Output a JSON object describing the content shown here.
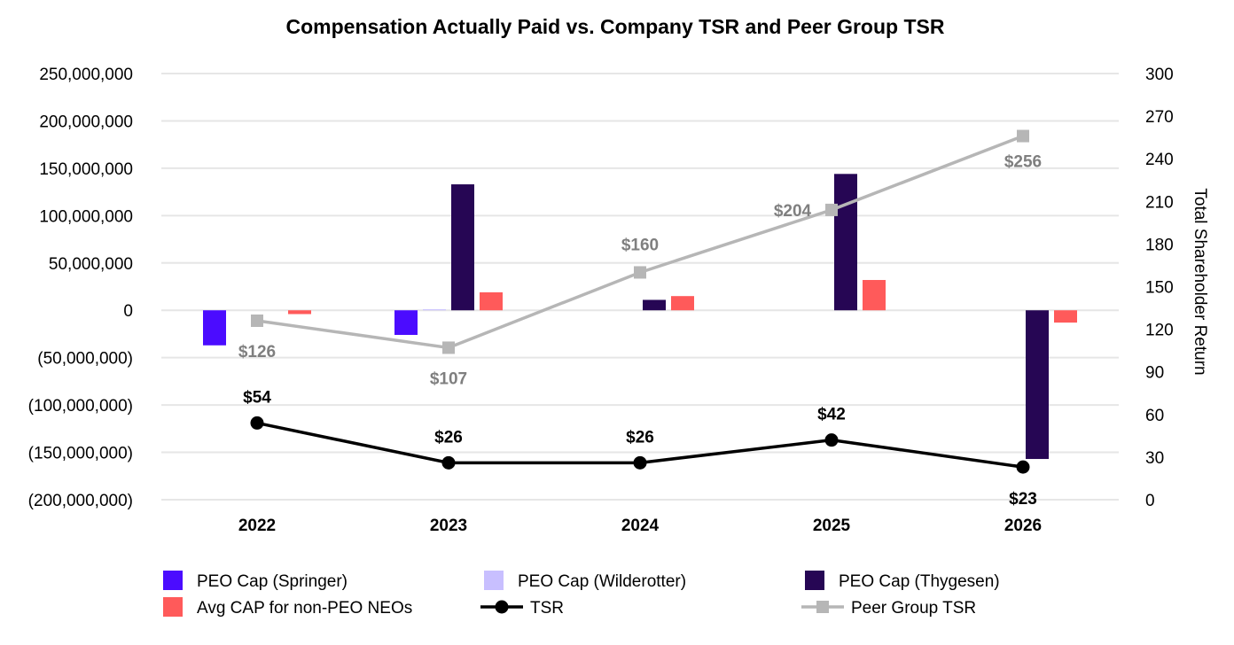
{
  "chart_data": {
    "type": "bar",
    "title": "Compensation Actually Paid vs. Company TSR and Peer Group TSR",
    "categories": [
      "2022",
      "2023",
      "2024",
      "2025",
      "2026"
    ],
    "y_left": {
      "range": [
        -200000000,
        250000000
      ],
      "ticks": [
        250000000,
        200000000,
        150000000,
        100000000,
        50000000,
        0,
        -50000000,
        -100000000,
        -150000000,
        -200000000
      ],
      "tick_labels": [
        "250,000,000",
        "200,000,000",
        "150,000,000",
        "100,000,000",
        "50,000,000",
        "0",
        "(50,000,000)",
        "(100,000,000)",
        "(150,000,000)",
        "(200,000,000)"
      ]
    },
    "y_right": {
      "label": "Total Shareholder Return",
      "range": [
        0,
        300
      ],
      "ticks": [
        300,
        270,
        240,
        210,
        180,
        150,
        120,
        90,
        60,
        30,
        0
      ],
      "tick_labels": [
        "300",
        "270",
        "240",
        "210",
        "180",
        "150",
        "120",
        "90",
        "60",
        "30",
        "0"
      ]
    },
    "grid": true,
    "legend_position": "bottom",
    "bar_series": [
      {
        "name": "PEO Cap (Springer)",
        "color": "#4b0cff",
        "values": [
          -37000000,
          -26000000,
          null,
          null,
          null
        ]
      },
      {
        "name": "PEO Cap (Wilderotter)",
        "color": "#c8bfff",
        "values": [
          null,
          1000000,
          null,
          null,
          null
        ]
      },
      {
        "name": "PEO Cap (Thygesen)",
        "color": "#260654",
        "values": [
          null,
          133000000,
          11000000,
          144000000,
          -157000000
        ]
      },
      {
        "name": "Avg CAP for non-PEO NEOs",
        "color": "#ff5a5a",
        "values": [
          -4000000,
          19000000,
          15000000,
          32000000,
          -13000000
        ]
      }
    ],
    "line_series": [
      {
        "name": "TSR",
        "color": "#000000",
        "marker": "circle",
        "values": [
          54,
          26,
          26,
          42,
          23
        ],
        "labels": [
          "$54",
          "$26",
          "$26",
          "$42",
          "$23"
        ]
      },
      {
        "name": "Peer Group TSR",
        "color": "#b6b6b6",
        "marker": "square",
        "values": [
          126,
          107,
          160,
          204,
          256
        ],
        "labels": [
          "$126",
          "$107",
          "$160",
          "$204",
          "$256"
        ]
      }
    ]
  }
}
